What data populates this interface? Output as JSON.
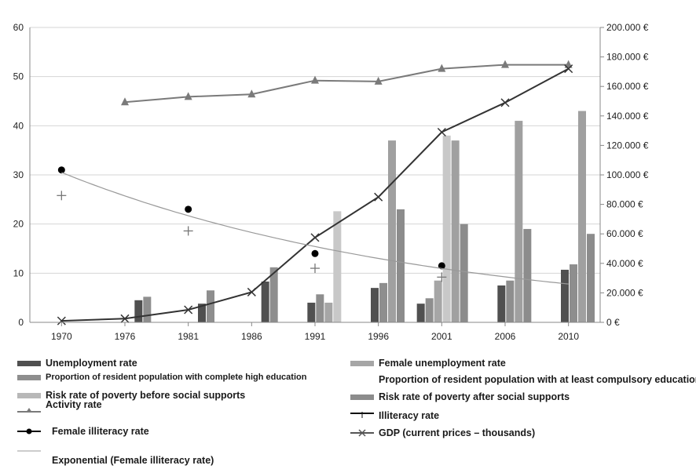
{
  "chart_data": {
    "type": "bar",
    "x": [
      "1970",
      "1976",
      "1981",
      "1986",
      "1991",
      "1996",
      "2001",
      "2006",
      "2010"
    ],
    "y_left_lim": [
      0,
      60
    ],
    "y_left_ticks": [
      "0",
      "10",
      "20",
      "30",
      "40",
      "50",
      "60"
    ],
    "y_right_lim": [
      0,
      200000
    ],
    "y_right_ticks": [
      "0 €",
      "20.000 €",
      "40.000 €",
      "60.000 €",
      "80.000 €",
      "100.000 €",
      "120.000 €",
      "140.000 €",
      "160.000 €",
      "180.000 €",
      "200.000 €"
    ],
    "grid": "horizontal",
    "legend_position": "bottom",
    "bar_series": [
      {
        "name": "Unemployment rate",
        "color": "#505050",
        "values": [
          null,
          4.5,
          3.8,
          8.3,
          4.0,
          7.0,
          3.8,
          7.5,
          10.7
        ]
      },
      {
        "name": "Proportion  of resident population  with complete  high education",
        "color": "#8e8e8e",
        "values": [
          null,
          5.2,
          6.5,
          11.2,
          5.7,
          8.0,
          4.9,
          8.5,
          11.8
        ]
      },
      {
        "name": "Female unemployment  rate",
        "color": "#a6a6a6",
        "values": [
          null,
          null,
          null,
          null,
          4.0,
          null,
          8.5,
          null,
          null
        ]
      },
      {
        "name": "Risk rate of poverty  before social supports",
        "color": "#c8c8c8",
        "values": [
          null,
          null,
          null,
          null,
          22.6,
          null,
          38.0,
          null,
          null
        ]
      },
      {
        "name": "Proportion  of resident population with at least compulsory  education",
        "color": "#a0a0a0",
        "values": [
          null,
          null,
          null,
          null,
          null,
          37.0,
          37.0,
          41.0,
          43.0
        ]
      },
      {
        "name": "Risk rate of poverty  after social supports",
        "color": "#8c8c8c",
        "values": [
          null,
          null,
          null,
          null,
          null,
          23.0,
          20.0,
          19.0,
          18.0
        ]
      }
    ],
    "line_series": [
      {
        "name": "Activity rate",
        "axis": "left",
        "color": "#7a7a7a",
        "marker": "triangle",
        "values": [
          null,
          44.8,
          45.9,
          46.4,
          49.2,
          49.0,
          51.6,
          52.4,
          52.4
        ]
      },
      {
        "name": "GDP (current prices – thousands)",
        "axis": "right",
        "color": "#333333",
        "marker": "x",
        "values": [
          1000,
          2500,
          8500,
          20500,
          57500,
          85000,
          129000,
          149000,
          172000
        ]
      },
      {
        "name": "Female illiteracy rate",
        "axis": "left",
        "color": "#000000",
        "marker": "dot",
        "line": false,
        "values": [
          31.0,
          null,
          23.0,
          null,
          14.0,
          null,
          11.5,
          null,
          null
        ]
      },
      {
        "name": "Illiteracy rate",
        "axis": "left",
        "color": "#777777",
        "marker": "plus",
        "line": false,
        "values": [
          25.8,
          null,
          18.6,
          null,
          11.0,
          null,
          9.2,
          null,
          null
        ]
      },
      {
        "name": "Exponential  (Female illiteracy rate)",
        "axis": "left",
        "color": "#999999",
        "marker": "none",
        "values": [
          30.5,
          null,
          null,
          null,
          null,
          null,
          null,
          null,
          7.8
        ]
      }
    ]
  },
  "legend": {
    "unemployment": "Unemployment rate",
    "higher_edu": "Proportion  of resident population  with complete  high education",
    "poverty_before": "Risk rate of poverty  before social supports",
    "activity": "Activity rate",
    "female_illiteracy": "Female illiteracy rate",
    "exponential": "Exponential  (Female illiteracy rate)",
    "female_unemployment": "Female unemployment  rate",
    "compulsory_edu": "Proportion  of resident population with at least compulsory  education",
    "poverty_after": "Risk rate of poverty  after social supports",
    "illiteracy": "Illiteracy rate",
    "gdp": "GDP (current prices – thousands)"
  }
}
